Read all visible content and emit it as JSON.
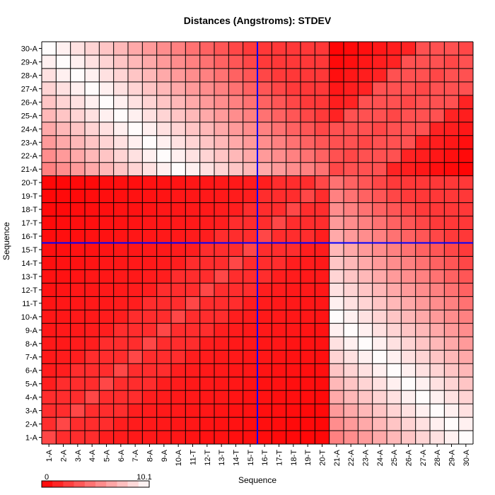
{
  "chart_data": {
    "type": "heatmap",
    "title": "Distances (Angstroms):  STDEV",
    "xlabel": "Sequence",
    "ylabel": "Sequence",
    "labels": [
      "1-A",
      "2-A",
      "3-A",
      "4-A",
      "5-A",
      "6-A",
      "7-A",
      "8-A",
      "9-A",
      "10-A",
      "11-T",
      "12-T",
      "13-T",
      "14-T",
      "15-T",
      "16-T",
      "17-T",
      "18-T",
      "19-T",
      "20-T",
      "21-A",
      "22-A",
      "23-A",
      "24-A",
      "25-A",
      "26-A",
      "27-A",
      "28-A",
      "29-A",
      "30-A"
    ],
    "value_range": [
      0,
      10.1
    ],
    "colorscale": {
      "low": "#ff0000",
      "high": "#ffffff"
    },
    "crosshair": {
      "x_between": [
        "15-T",
        "16-T"
      ],
      "y_between": [
        "15-T",
        "16-T"
      ],
      "color": "#0000ff"
    },
    "grid": true,
    "legend": {
      "position": "bottom-left",
      "min_label": "0",
      "max_label": "10.1",
      "steps": 10
    },
    "note": "values estimated from color intensity; matrix is symmetric, z[i][j] = value for row label i, column label j"
  }
}
